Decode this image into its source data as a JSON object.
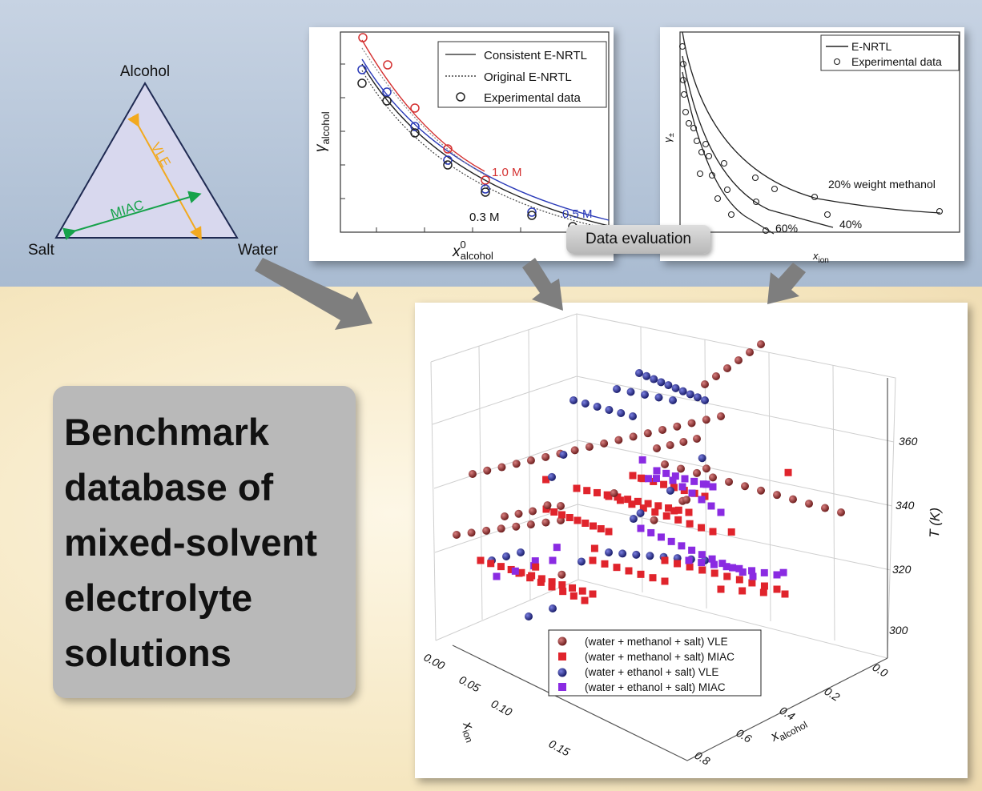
{
  "ternary": {
    "top_label": "Alcohol",
    "left_label": "Salt",
    "right_label": "Water",
    "arrow_vle": "VLE",
    "arrow_miac": "MIAC"
  },
  "chart_left": {
    "xlabel": "x",
    "xlabel_sup": "0",
    "xlabel_sub": "alcohol",
    "ylabel": "γ",
    "ylabel_sub": "alcohol",
    "legend": [
      "Consistent E-NRTL",
      "Original E-NRTL",
      "Experimental data"
    ],
    "curve_labels": [
      "1.0 M",
      "0.5 M",
      "0.3 M"
    ]
  },
  "chart_right": {
    "xlabel": "x",
    "xlabel_sub": "ion",
    "ylabel": "γ",
    "ylabel_sub": "±",
    "legend": [
      "E-NRTL",
      "Experimental data"
    ],
    "curve_labels": [
      "20% weight methanol",
      "40%",
      "60%"
    ]
  },
  "pill_label": "Data evaluation",
  "title_lines": [
    "Benchmark",
    "database of",
    "mixed-solvent",
    "electrolyte",
    "solutions"
  ],
  "chart_data": [
    {
      "type": "line",
      "xlabel": "x⁰alcohol",
      "ylabel": "γalcohol",
      "series": [
        {
          "name": "1.0 M",
          "curve_labels": [
            "Consistent E-NRTL",
            "Original E-NRTL",
            "Experimental data"
          ],
          "x": [
            0.05,
            0.12,
            0.2,
            0.3,
            0.42
          ],
          "y": [
            0.95,
            0.86,
            0.73,
            0.62,
            0.49
          ]
        },
        {
          "name": "0.5 M",
          "x": [
            0.05,
            0.12,
            0.2,
            0.3,
            0.42,
            0.56
          ],
          "y": [
            0.8,
            0.7,
            0.56,
            0.46,
            0.37,
            0.29
          ]
        },
        {
          "name": "0.3 M",
          "x": [
            0.05,
            0.12,
            0.2,
            0.3,
            0.42,
            0.56
          ],
          "y": [
            0.76,
            0.66,
            0.52,
            0.42,
            0.34,
            0.27
          ]
        }
      ]
    },
    {
      "type": "line",
      "xlabel": "xion",
      "ylabel": "γ±",
      "series": [
        {
          "name": "20% weight methanol"
        },
        {
          "name": "40%"
        },
        {
          "name": "60%"
        }
      ]
    },
    {
      "type": "scatter",
      "xlabel": "x alcohol",
      "ylabel": "xion",
      "zlabel": "T (K)",
      "x_ticks": [
        "0.0",
        "0.2",
        "0.4",
        "0.6",
        "0.8"
      ],
      "y_ticks": [
        "0.00",
        "0.05",
        "0.10",
        "0.15"
      ],
      "z_ticks": [
        "300",
        "320",
        "340",
        "360"
      ],
      "series": [
        {
          "name": "(water + methanol + salt) VLE",
          "color": "#8b2c2c",
          "marker": "sphere"
        },
        {
          "name": "(water + methanol + salt) MIAC",
          "color": "#e0242c",
          "marker": "cube"
        },
        {
          "name": "(water + ethanol + salt) VLE",
          "color": "#2b2f8f",
          "marker": "sphere"
        },
        {
          "name": "(water + ethanol + salt) MIAC",
          "color": "#8a2be2",
          "marker": "cube"
        }
      ]
    }
  ],
  "scatter_legend": [
    {
      "label": "(water + methanol + salt) VLE",
      "color": "#8b2c2c",
      "shape": "circle"
    },
    {
      "label": "(water + methanol + salt) MIAC",
      "color": "#e0242c",
      "shape": "square"
    },
    {
      "label": "(water + ethanol + salt) VLE",
      "color": "#2b2f8f",
      "shape": "circle"
    },
    {
      "label": "(water + ethanol + salt) MIAC",
      "color": "#8a2be2",
      "shape": "square"
    }
  ],
  "scatter_axes": {
    "z_label": "T (K)",
    "x_label": "x",
    "x_label_sub": "alcohol",
    "y_label": "x",
    "y_label_sub": "ion"
  }
}
